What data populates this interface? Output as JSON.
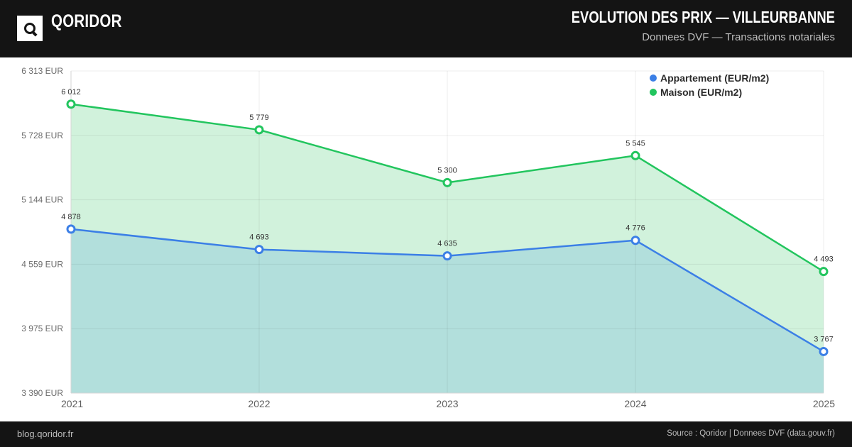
{
  "header": {
    "brand": "QORIDOR",
    "title": "EVOLUTION DES PRIX — VILLEURBANNE",
    "subtitle": "Donnees DVF — Transactions notariales",
    "logo_icon": "search-icon"
  },
  "footer": {
    "left": "blog.qoridor.fr",
    "right": "Source : Qoridor | Donnees DVF (data.gouv.fr)"
  },
  "chart_data": {
    "type": "area",
    "categories": [
      "2021",
      "2022",
      "2023",
      "2024",
      "2025"
    ],
    "series": [
      {
        "name": "Appartement (EUR/m2)",
        "values": [
          4878,
          4693,
          4635,
          4776,
          3767
        ],
        "labels": [
          "4 878",
          "4 693",
          "4 635",
          "4 776",
          "3 767"
        ],
        "color": "#3b7fe6",
        "fill": "#b2dfdc"
      },
      {
        "name": "Maison (EUR/m2)",
        "values": [
          6012,
          5779,
          5300,
          5545,
          4493
        ],
        "labels": [
          "6 012",
          "5 779",
          "5 300",
          "5 545",
          "4 493"
        ],
        "color": "#22c55e",
        "fill": "#d1f2dc"
      }
    ],
    "y_ticks": [
      3390,
      3975,
      4559,
      5144,
      5728,
      6313
    ],
    "y_tick_labels": [
      "3 390 EUR",
      "3 975 EUR",
      "4 559 EUR",
      "5 144 EUR",
      "5 728 EUR",
      "6 313 EUR"
    ],
    "ylim": [
      3390,
      6313
    ],
    "grid": true,
    "legend_position": "top-right"
  }
}
